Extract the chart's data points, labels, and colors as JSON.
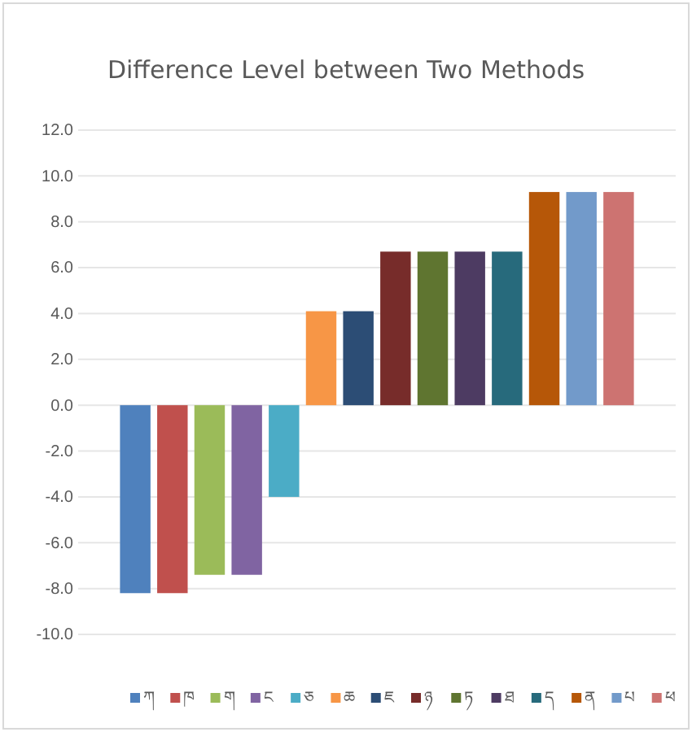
{
  "chart_data": {
    "type": "bar",
    "title": "Difference Level between Two Methods",
    "categories": [
      null
    ],
    "series": [
      {
        "name": "ཀ",
        "color": "#4f81bd",
        "values": [
          -8.2
        ]
      },
      {
        "name": "ཁ",
        "color": "#c0504d",
        "values": [
          -8.2
        ]
      },
      {
        "name": "ག",
        "color": "#9bbb59",
        "values": [
          -7.4
        ]
      },
      {
        "name": "ང",
        "color": "#8064a2",
        "values": [
          -7.4
        ]
      },
      {
        "name": "ཅ",
        "color": "#4bacc6",
        "values": [
          -4.0
        ]
      },
      {
        "name": "ཆ",
        "color": "#f79646",
        "values": [
          4.1
        ]
      },
      {
        "name": "ཇ",
        "color": "#2c4d75",
        "values": [
          4.1
        ]
      },
      {
        "name": "ཉ",
        "color": "#772c2a",
        "values": [
          6.7
        ]
      },
      {
        "name": "ཏ",
        "color": "#5f7530",
        "values": [
          6.7
        ]
      },
      {
        "name": "ཐ",
        "color": "#4d3b62",
        "values": [
          6.7
        ]
      },
      {
        "name": "ད",
        "color": "#276a7c",
        "values": [
          6.7
        ]
      },
      {
        "name": "ན",
        "color": "#b65708",
        "values": [
          9.3
        ]
      },
      {
        "name": "པ",
        "color": "#729aca",
        "values": [
          9.3
        ]
      },
      {
        "name": "ཕ",
        "color": "#cd7371",
        "values": [
          9.3
        ]
      }
    ],
    "ylim": [
      -10,
      12
    ],
    "yticks": [
      {
        "value": -10,
        "label": "-10.0"
      },
      {
        "value": -8,
        "label": "-8.0"
      },
      {
        "value": -6,
        "label": "-6.0"
      },
      {
        "value": -4,
        "label": "-4.0"
      },
      {
        "value": -2,
        "label": "-2.0"
      },
      {
        "value": 0,
        "label": "0.0"
      },
      {
        "value": 2,
        "label": "2.0"
      },
      {
        "value": 4,
        "label": "4.0"
      },
      {
        "value": 6,
        "label": "6.0"
      },
      {
        "value": 8,
        "label": "8.0"
      },
      {
        "value": 10,
        "label": "10.0"
      },
      {
        "value": 12,
        "label": "12.0"
      }
    ],
    "grid": true,
    "legend": "bottom"
  }
}
